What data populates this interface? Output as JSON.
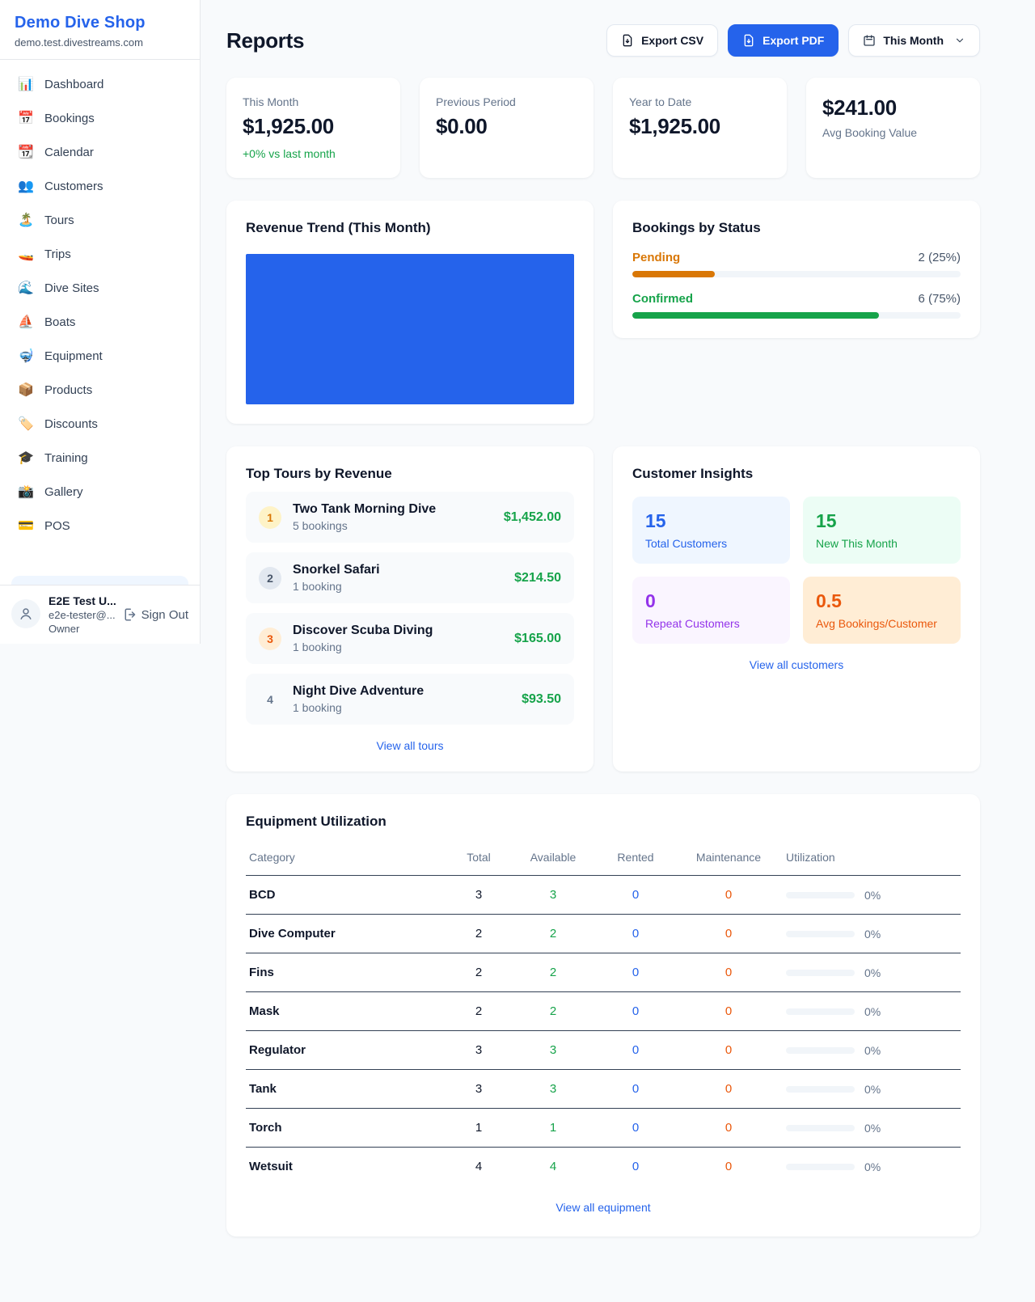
{
  "colors": {
    "accent_blue": "#2563eb",
    "green": "#16a34a",
    "pending_orange": "#d97706",
    "maintenance_orange": "#ea580c",
    "purple": "#9333ea"
  },
  "sidebar": {
    "title": "Demo Dive Shop",
    "subtitle": "demo.test.divestreams.com",
    "items": [
      {
        "icon": "📊",
        "label": "Dashboard"
      },
      {
        "icon": "📅",
        "label": "Bookings"
      },
      {
        "icon": "📆",
        "label": "Calendar"
      },
      {
        "icon": "👥",
        "label": "Customers"
      },
      {
        "icon": "🏝️",
        "label": "Tours"
      },
      {
        "icon": "🚤",
        "label": "Trips"
      },
      {
        "icon": "🌊",
        "label": "Dive Sites"
      },
      {
        "icon": "⛵",
        "label": "Boats"
      },
      {
        "icon": "🤿",
        "label": "Equipment"
      },
      {
        "icon": "📦",
        "label": "Products"
      },
      {
        "icon": "🏷️",
        "label": "Discounts"
      },
      {
        "icon": "🎓",
        "label": "Training"
      },
      {
        "icon": "📸",
        "label": "Gallery"
      },
      {
        "icon": "💳",
        "label": "POS"
      }
    ],
    "user": {
      "name": "E2E Test U...",
      "email": "e2e-tester@...",
      "role": "Owner",
      "sign_out": "Sign Out"
    }
  },
  "header": {
    "title": "Reports",
    "export_csv": "Export CSV",
    "export_pdf": "Export PDF",
    "period": "This Month"
  },
  "stats": [
    {
      "label": "This Month",
      "value": "$1,925.00",
      "delta": "+0% vs last month"
    },
    {
      "label": "Previous Period",
      "value": "$0.00",
      "delta": ""
    },
    {
      "label": "Year to Date",
      "value": "$1,925.00",
      "delta": ""
    },
    {
      "label": "Avg Booking Value",
      "value": "$241.00",
      "delta": ""
    }
  ],
  "revenue_trend": {
    "title": "Revenue Trend (This Month)",
    "bar_color": "#2563eb"
  },
  "bookings_by_status": {
    "title": "Bookings by Status",
    "rows": [
      {
        "label": "Pending",
        "count_label": "2 (25%)",
        "percent": 25,
        "color": "#d97706"
      },
      {
        "label": "Confirmed",
        "count_label": "6 (75%)",
        "percent": 75,
        "color": "#16a34a"
      }
    ]
  },
  "top_tours": {
    "title": "Top Tours by Revenue",
    "items": [
      {
        "rank": "1",
        "rank_class": "gold",
        "name": "Two Tank Morning Dive",
        "bookings": "5 bookings",
        "revenue": "$1,452.00"
      },
      {
        "rank": "2",
        "rank_class": "silver",
        "name": "Snorkel Safari",
        "bookings": "1 booking",
        "revenue": "$214.50"
      },
      {
        "rank": "3",
        "rank_class": "bronze",
        "name": "Discover Scuba Diving",
        "bookings": "1 booking",
        "revenue": "$165.00"
      },
      {
        "rank": "4",
        "rank_class": "plain",
        "name": "Night Dive Adventure",
        "bookings": "1 booking",
        "revenue": "$93.50"
      }
    ],
    "link": "View all tours"
  },
  "customer_insights": {
    "title": "Customer Insights",
    "cards": [
      {
        "value": "15",
        "label": "Total Customers",
        "tone": "blue"
      },
      {
        "value": "15",
        "label": "New This Month",
        "tone": "green"
      },
      {
        "value": "0",
        "label": "Repeat Customers",
        "tone": "purple"
      },
      {
        "value": "0.5",
        "label": "Avg Bookings/Customer",
        "tone": "orange"
      }
    ],
    "link": "View all customers"
  },
  "equipment": {
    "title": "Equipment Utilization",
    "columns": [
      "Category",
      "Total",
      "Available",
      "Rented",
      "Maintenance",
      "Utilization"
    ],
    "rows": [
      {
        "category": "BCD",
        "total": "3",
        "available": "3",
        "rented": "0",
        "maintenance": "0",
        "utilization": "0%",
        "bar_percent": 0
      },
      {
        "category": "Dive Computer",
        "total": "2",
        "available": "2",
        "rented": "0",
        "maintenance": "0",
        "utilization": "0%",
        "bar_percent": 0
      },
      {
        "category": "Fins",
        "total": "2",
        "available": "2",
        "rented": "0",
        "maintenance": "0",
        "utilization": "0%",
        "bar_percent": 0
      },
      {
        "category": "Mask",
        "total": "2",
        "available": "2",
        "rented": "0",
        "maintenance": "0",
        "utilization": "0%",
        "bar_percent": 0
      },
      {
        "category": "Regulator",
        "total": "3",
        "available": "3",
        "rented": "0",
        "maintenance": "0",
        "utilization": "0%",
        "bar_percent": 0
      },
      {
        "category": "Tank",
        "total": "3",
        "available": "3",
        "rented": "0",
        "maintenance": "0",
        "utilization": "0%",
        "bar_percent": 0
      },
      {
        "category": "Torch",
        "total": "1",
        "available": "1",
        "rented": "0",
        "maintenance": "0",
        "utilization": "0%",
        "bar_percent": 0
      },
      {
        "category": "Wetsuit",
        "total": "4",
        "available": "4",
        "rented": "0",
        "maintenance": "0",
        "utilization": "0%",
        "bar_percent": 0
      }
    ],
    "link": "View all equipment"
  }
}
